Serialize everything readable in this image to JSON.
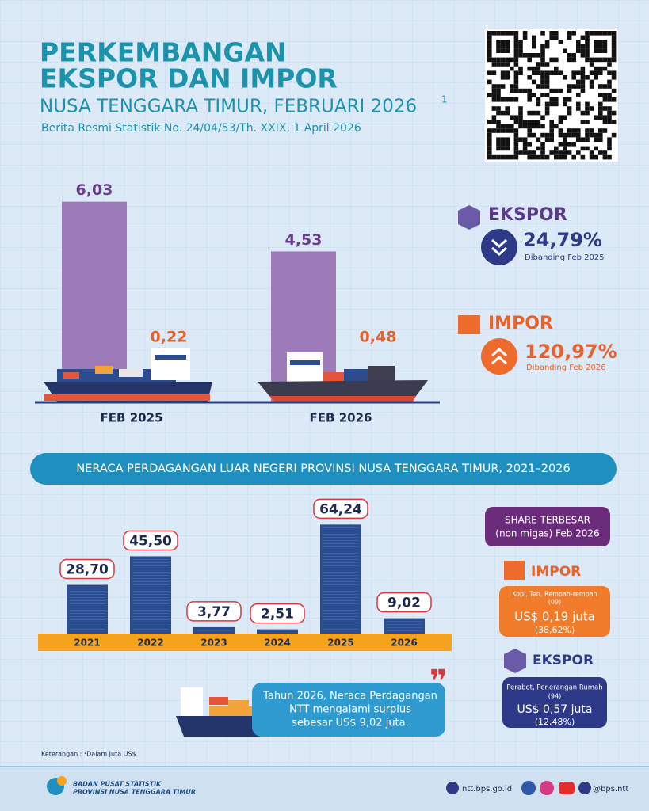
{
  "header": {
    "title_line1": "PERKEMBANGAN",
    "title_line2": "EKSPOR DAN IMPOR",
    "subtitle": "NUSA TENGGARA TIMUR, FEBRUARI 2026",
    "subtitle_note": "1",
    "release": "Berita Resmi Statistik No. 24/04/53/Th. XXIX, 1 April 2026"
  },
  "chart_data": [
    {
      "type": "bar",
      "categories": [
        "FEB 2025",
        "FEB 2026"
      ],
      "series": [
        {
          "name": "EKSPOR",
          "color": "#9d7bb8",
          "values": [
            6.03,
            4.53
          ],
          "value_labels": [
            "6,03",
            "4,53"
          ]
        },
        {
          "name": "IMPOR",
          "color": "#f9b58a",
          "values": [
            0.22,
            0.48
          ],
          "value_labels": [
            "0,22",
            "0,48"
          ]
        }
      ],
      "ylim": [
        0,
        6.5
      ]
    },
    {
      "type": "bar",
      "title": "NERACA PERDAGANGAN LUAR NEGERI PROVINSI NUSA TENGGARA TIMUR, 2021–2026",
      "categories": [
        "2021",
        "2022",
        "2023",
        "2024",
        "2025",
        "2026"
      ],
      "values": [
        28.7,
        45.5,
        3.77,
        2.51,
        64.24,
        9.02
      ],
      "value_labels": [
        "28,70",
        "45,50",
        "3,77",
        "2,51",
        "64,24",
        "9,02"
      ],
      "color": "#2b4c8e",
      "ylim": [
        0,
        70
      ]
    }
  ],
  "changes": [
    {
      "value": "24,79%",
      "note": "Dibanding Feb 2025"
    },
    {
      "value": "120,97%",
      "note": "Dibanding Feb 2026"
    }
  ],
  "share": {
    "title_line1": "SHARE TERBESAR",
    "title_line2": "(non migas) Feb 2026",
    "items": [
      {
        "label": "IMPOR",
        "commodity": "Kopi, Teh, Rempah-rempah",
        "code": "(09)",
        "value": "US$ 0,19 juta",
        "share": "(38,62%)"
      },
      {
        "label": "EKSPOR",
        "commodity": "Perabot, Penerangan Rumah",
        "code": "(94)",
        "value": "US$ 0,57 juta",
        "share": "(12,48%)"
      }
    ]
  },
  "quote": {
    "lines": [
      "Tahun 2026, Neraca Perdagangan",
      "NTT mengalami surplus",
      "sebesar US$ 9,02 juta."
    ]
  },
  "footnote": "Keterangan : ¹Dalam Juta US$",
  "footer": {
    "org_line1": "BADAN PUSAT STATISTIK",
    "org_line2": "PROVINSI NUSA TENGGARA TIMUR",
    "website": "ntt.bps.go.id",
    "social": "@bps.ntt"
  }
}
